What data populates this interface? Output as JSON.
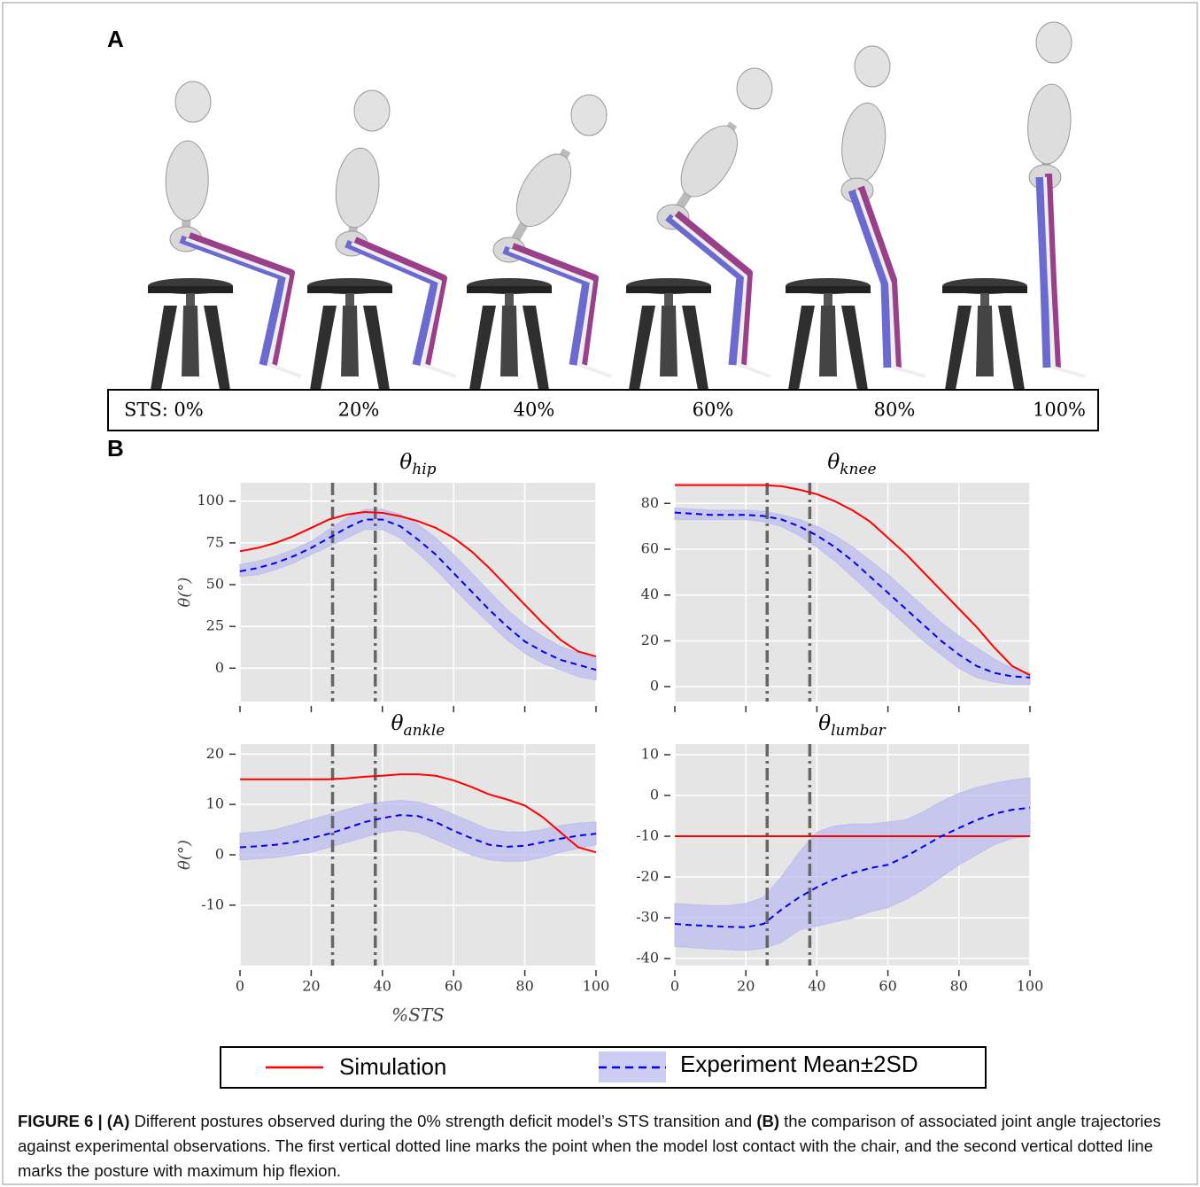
{
  "panel_a": {
    "label": "A",
    "sts_label": "STS:",
    "sts_values": [
      "0%",
      "20%",
      "40%",
      "60%",
      "80%",
      "100%"
    ]
  },
  "panel_b": {
    "label": "B"
  },
  "chart_data": [
    {
      "type": "line",
      "title": "θ",
      "title_sub": "hip",
      "ylabel": "θ(°)",
      "x": [
        0,
        5,
        10,
        15,
        20,
        25,
        30,
        35,
        40,
        45,
        50,
        55,
        60,
        65,
        70,
        75,
        80,
        85,
        90,
        95,
        100
      ],
      "xlim": [
        0,
        100
      ],
      "xticks": [
        0,
        20,
        40,
        60,
        80,
        100
      ],
      "xtick_labels": false,
      "ylim": [
        -20,
        111
      ],
      "yticks": [
        0,
        25,
        50,
        75,
        100
      ],
      "grid": true,
      "vlines": [
        26,
        38
      ],
      "series": [
        {
          "name": "Simulation",
          "color": "#ff0000",
          "style": "solid",
          "values": [
            70,
            72,
            75,
            79,
            84,
            89,
            92,
            93.5,
            93,
            91,
            88,
            84,
            78,
            70,
            60,
            49,
            38,
            27,
            17,
            10,
            7
          ]
        },
        {
          "name": "Experiment Mean±2SD",
          "color": "#0000ee",
          "style": "dashed",
          "band_color": "#bcbcf0",
          "values": [
            58,
            60,
            63,
            67,
            72,
            78,
            84,
            89,
            89,
            85,
            77,
            68,
            57,
            46,
            35,
            25,
            16,
            10,
            5,
            2,
            -1
          ],
          "lower": [
            55,
            56,
            59,
            63,
            68,
            73,
            78,
            83,
            83,
            78,
            69,
            59,
            48,
            37,
            27,
            17,
            9,
            3,
            -1,
            -5,
            -7
          ],
          "upper": [
            62,
            64,
            67,
            71,
            76,
            83,
            90,
            95,
            95,
            92,
            86,
            78,
            68,
            57,
            46,
            35,
            26,
            19,
            13,
            9,
            6
          ]
        }
      ]
    },
    {
      "type": "line",
      "title": "θ",
      "title_sub": "knee",
      "x": [
        0,
        5,
        10,
        15,
        20,
        25,
        30,
        35,
        40,
        45,
        50,
        55,
        60,
        65,
        70,
        75,
        80,
        85,
        90,
        95,
        100
      ],
      "xlim": [
        0,
        100
      ],
      "xticks": [
        0,
        20,
        40,
        60,
        80,
        100
      ],
      "xtick_labels": false,
      "ylim": [
        -6.5,
        89
      ],
      "yticks": [
        0,
        20,
        40,
        60,
        80
      ],
      "grid": true,
      "vlines": [
        26,
        38
      ],
      "series": [
        {
          "name": "Simulation",
          "color": "#ff0000",
          "style": "solid",
          "values": [
            88,
            88,
            88,
            88,
            88,
            88,
            87.5,
            86,
            84,
            81,
            77,
            72,
            65,
            58,
            50,
            42,
            34,
            26,
            17,
            9,
            5
          ]
        },
        {
          "name": "Experiment Mean±2SD",
          "color": "#0000ee",
          "style": "dashed",
          "band_color": "#bcbcf0",
          "values": [
            76,
            75.5,
            75,
            75,
            75,
            74.5,
            73,
            70,
            66,
            61,
            55,
            48,
            41,
            34,
            27,
            20,
            14,
            9,
            6,
            4.5,
            4
          ],
          "lower": [
            73,
            73,
            73,
            73,
            73,
            72,
            70,
            66,
            61,
            55,
            48,
            41,
            34,
            27,
            20,
            14,
            8,
            4,
            2,
            1,
            1
          ],
          "upper": [
            78,
            77.5,
            77,
            77,
            77,
            76.5,
            75,
            73,
            70,
            66,
            61,
            55,
            49,
            42,
            35,
            28,
            22,
            17,
            12,
            8,
            6
          ]
        }
      ]
    },
    {
      "type": "line",
      "title": "θ",
      "title_sub": "ankle",
      "ylabel": "θ(°)",
      "xlabel": "%STS",
      "x": [
        0,
        5,
        10,
        15,
        20,
        25,
        30,
        35,
        40,
        45,
        50,
        55,
        60,
        65,
        70,
        75,
        80,
        85,
        90,
        95,
        100
      ],
      "xlim": [
        0,
        100
      ],
      "xticks": [
        0,
        20,
        40,
        60,
        80,
        100
      ],
      "xtick_labels": true,
      "ylim": [
        -22,
        22
      ],
      "yticks": [
        -10,
        0,
        10,
        20
      ],
      "grid": true,
      "vlines": [
        26,
        38
      ],
      "series": [
        {
          "name": "Simulation",
          "color": "#ff0000",
          "style": "solid",
          "values": [
            15,
            15,
            15,
            15,
            15,
            15,
            15.2,
            15.5,
            15.7,
            16,
            16,
            15.7,
            14.8,
            13.5,
            12,
            11,
            9.8,
            7.5,
            4.5,
            1.5,
            0.5
          ]
        },
        {
          "name": "Experiment Mean±2SD",
          "color": "#0000ee",
          "style": "dashed",
          "band_color": "#bcbcf0",
          "values": [
            1.5,
            1.7,
            2,
            2.5,
            3.3,
            4.2,
            5.3,
            6.5,
            7.3,
            7.9,
            7.7,
            6.5,
            4.8,
            3.3,
            2,
            1.6,
            1.8,
            2.5,
            3.2,
            3.8,
            4.2
          ],
          "lower": [
            -1,
            -0.8,
            -0.5,
            0,
            0.5,
            1.5,
            2.5,
            3.5,
            4.5,
            5,
            4.5,
            3,
            1.5,
            0,
            -1,
            -1.3,
            -1.2,
            -0.5,
            0.5,
            1.3,
            2
          ],
          "upper": [
            4.3,
            4.5,
            5,
            6,
            7,
            8,
            9,
            10,
            10.5,
            10.8,
            10.5,
            9.5,
            8,
            6.5,
            5,
            4.5,
            4.5,
            5,
            5.8,
            6.3,
            6.5
          ]
        }
      ]
    },
    {
      "type": "line",
      "title": "θ",
      "title_sub": "lumbar",
      "x": [
        0,
        5,
        10,
        15,
        20,
        25,
        30,
        35,
        40,
        45,
        50,
        55,
        60,
        65,
        70,
        75,
        80,
        85,
        90,
        95,
        100
      ],
      "xlim": [
        0,
        100
      ],
      "xticks": [
        0,
        20,
        40,
        60,
        80,
        100
      ],
      "xtick_labels": true,
      "ylim": [
        -41.7,
        12.6
      ],
      "yticks": [
        -40,
        -30,
        -20,
        -10,
        0,
        10
      ],
      "grid": true,
      "vlines": [
        26,
        38
      ],
      "series": [
        {
          "name": "Simulation",
          "color": "#ff0000",
          "style": "solid",
          "values": [
            -10,
            -10,
            -10,
            -10,
            -10,
            -10,
            -10,
            -10,
            -10,
            -10,
            -10,
            -10,
            -10,
            -10,
            -10,
            -10,
            -10,
            -10,
            -10,
            -10,
            -10
          ]
        },
        {
          "name": "Experiment Mean±2SD",
          "color": "#0000ee",
          "style": "dashed",
          "band_color": "#bcbcf0",
          "values": [
            -31.5,
            -31.8,
            -32,
            -32.2,
            -32.3,
            -31.5,
            -28,
            -25,
            -22.5,
            -20.5,
            -19,
            -17.8,
            -17,
            -15,
            -12.5,
            -10,
            -8,
            -6,
            -4.5,
            -3.5,
            -3
          ],
          "lower": [
            -37,
            -37.3,
            -37.6,
            -37.8,
            -38,
            -37.5,
            -36,
            -33,
            -32,
            -31,
            -30,
            -28.5,
            -27.5,
            -25.5,
            -23,
            -20,
            -17,
            -14.5,
            -12,
            -10.5,
            -10
          ],
          "upper": [
            -26.5,
            -26.8,
            -27,
            -27,
            -26.5,
            -25,
            -20,
            -14,
            -9,
            -7.5,
            -7,
            -7,
            -6.5,
            -6,
            -4,
            -1.5,
            0.5,
            2,
            3,
            3.8,
            4.3
          ]
        }
      ]
    }
  ],
  "caption": [
    {
      "text": "FIGURE 6 | (A)",
      "bold": true
    },
    {
      "text": " Different postures observed during the 0% strength deficit model’s STS transition and ",
      "bold": false
    },
    {
      "text": "(B)",
      "bold": true
    },
    {
      "text": " the comparison of associated joint angle trajectories against experimental observations. The first vertical dotted line marks the point when the model lost contact with the chair, and the second vertical dotted line marks the posture with maximum hip flexion.",
      "bold": false
    }
  ]
}
